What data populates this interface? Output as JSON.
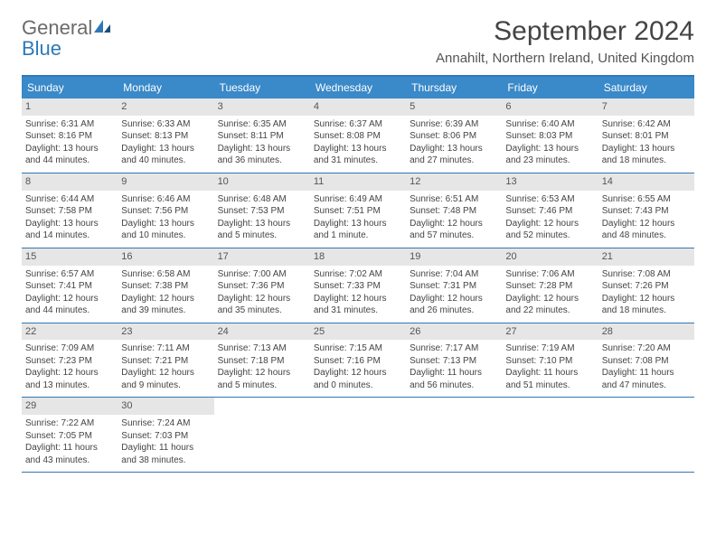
{
  "logo": {
    "general": "General",
    "blue": "Blue"
  },
  "title": "September 2024",
  "location": "Annahilt, Northern Ireland, United Kingdom",
  "colors": {
    "header_bg": "#3a89c9",
    "header_text": "#ffffff",
    "border": "#2f78b8",
    "date_bar_bg": "#e6e6e6",
    "text": "#444444",
    "logo_gray": "#6b6b6b",
    "logo_blue": "#2f78b8"
  },
  "day_headers": [
    "Sunday",
    "Monday",
    "Tuesday",
    "Wednesday",
    "Thursday",
    "Friday",
    "Saturday"
  ],
  "weeks": [
    [
      {
        "date": "1",
        "sunrise": "Sunrise: 6:31 AM",
        "sunset": "Sunset: 8:16 PM",
        "daylight": "Daylight: 13 hours and 44 minutes."
      },
      {
        "date": "2",
        "sunrise": "Sunrise: 6:33 AM",
        "sunset": "Sunset: 8:13 PM",
        "daylight": "Daylight: 13 hours and 40 minutes."
      },
      {
        "date": "3",
        "sunrise": "Sunrise: 6:35 AM",
        "sunset": "Sunset: 8:11 PM",
        "daylight": "Daylight: 13 hours and 36 minutes."
      },
      {
        "date": "4",
        "sunrise": "Sunrise: 6:37 AM",
        "sunset": "Sunset: 8:08 PM",
        "daylight": "Daylight: 13 hours and 31 minutes."
      },
      {
        "date": "5",
        "sunrise": "Sunrise: 6:39 AM",
        "sunset": "Sunset: 8:06 PM",
        "daylight": "Daylight: 13 hours and 27 minutes."
      },
      {
        "date": "6",
        "sunrise": "Sunrise: 6:40 AM",
        "sunset": "Sunset: 8:03 PM",
        "daylight": "Daylight: 13 hours and 23 minutes."
      },
      {
        "date": "7",
        "sunrise": "Sunrise: 6:42 AM",
        "sunset": "Sunset: 8:01 PM",
        "daylight": "Daylight: 13 hours and 18 minutes."
      }
    ],
    [
      {
        "date": "8",
        "sunrise": "Sunrise: 6:44 AM",
        "sunset": "Sunset: 7:58 PM",
        "daylight": "Daylight: 13 hours and 14 minutes."
      },
      {
        "date": "9",
        "sunrise": "Sunrise: 6:46 AM",
        "sunset": "Sunset: 7:56 PM",
        "daylight": "Daylight: 13 hours and 10 minutes."
      },
      {
        "date": "10",
        "sunrise": "Sunrise: 6:48 AM",
        "sunset": "Sunset: 7:53 PM",
        "daylight": "Daylight: 13 hours and 5 minutes."
      },
      {
        "date": "11",
        "sunrise": "Sunrise: 6:49 AM",
        "sunset": "Sunset: 7:51 PM",
        "daylight": "Daylight: 13 hours and 1 minute."
      },
      {
        "date": "12",
        "sunrise": "Sunrise: 6:51 AM",
        "sunset": "Sunset: 7:48 PM",
        "daylight": "Daylight: 12 hours and 57 minutes."
      },
      {
        "date": "13",
        "sunrise": "Sunrise: 6:53 AM",
        "sunset": "Sunset: 7:46 PM",
        "daylight": "Daylight: 12 hours and 52 minutes."
      },
      {
        "date": "14",
        "sunrise": "Sunrise: 6:55 AM",
        "sunset": "Sunset: 7:43 PM",
        "daylight": "Daylight: 12 hours and 48 minutes."
      }
    ],
    [
      {
        "date": "15",
        "sunrise": "Sunrise: 6:57 AM",
        "sunset": "Sunset: 7:41 PM",
        "daylight": "Daylight: 12 hours and 44 minutes."
      },
      {
        "date": "16",
        "sunrise": "Sunrise: 6:58 AM",
        "sunset": "Sunset: 7:38 PM",
        "daylight": "Daylight: 12 hours and 39 minutes."
      },
      {
        "date": "17",
        "sunrise": "Sunrise: 7:00 AM",
        "sunset": "Sunset: 7:36 PM",
        "daylight": "Daylight: 12 hours and 35 minutes."
      },
      {
        "date": "18",
        "sunrise": "Sunrise: 7:02 AM",
        "sunset": "Sunset: 7:33 PM",
        "daylight": "Daylight: 12 hours and 31 minutes."
      },
      {
        "date": "19",
        "sunrise": "Sunrise: 7:04 AM",
        "sunset": "Sunset: 7:31 PM",
        "daylight": "Daylight: 12 hours and 26 minutes."
      },
      {
        "date": "20",
        "sunrise": "Sunrise: 7:06 AM",
        "sunset": "Sunset: 7:28 PM",
        "daylight": "Daylight: 12 hours and 22 minutes."
      },
      {
        "date": "21",
        "sunrise": "Sunrise: 7:08 AM",
        "sunset": "Sunset: 7:26 PM",
        "daylight": "Daylight: 12 hours and 18 minutes."
      }
    ],
    [
      {
        "date": "22",
        "sunrise": "Sunrise: 7:09 AM",
        "sunset": "Sunset: 7:23 PM",
        "daylight": "Daylight: 12 hours and 13 minutes."
      },
      {
        "date": "23",
        "sunrise": "Sunrise: 7:11 AM",
        "sunset": "Sunset: 7:21 PM",
        "daylight": "Daylight: 12 hours and 9 minutes."
      },
      {
        "date": "24",
        "sunrise": "Sunrise: 7:13 AM",
        "sunset": "Sunset: 7:18 PM",
        "daylight": "Daylight: 12 hours and 5 minutes."
      },
      {
        "date": "25",
        "sunrise": "Sunrise: 7:15 AM",
        "sunset": "Sunset: 7:16 PM",
        "daylight": "Daylight: 12 hours and 0 minutes."
      },
      {
        "date": "26",
        "sunrise": "Sunrise: 7:17 AM",
        "sunset": "Sunset: 7:13 PM",
        "daylight": "Daylight: 11 hours and 56 minutes."
      },
      {
        "date": "27",
        "sunrise": "Sunrise: 7:19 AM",
        "sunset": "Sunset: 7:10 PM",
        "daylight": "Daylight: 11 hours and 51 minutes."
      },
      {
        "date": "28",
        "sunrise": "Sunrise: 7:20 AM",
        "sunset": "Sunset: 7:08 PM",
        "daylight": "Daylight: 11 hours and 47 minutes."
      }
    ],
    [
      {
        "date": "29",
        "sunrise": "Sunrise: 7:22 AM",
        "sunset": "Sunset: 7:05 PM",
        "daylight": "Daylight: 11 hours and 43 minutes."
      },
      {
        "date": "30",
        "sunrise": "Sunrise: 7:24 AM",
        "sunset": "Sunset: 7:03 PM",
        "daylight": "Daylight: 11 hours and 38 minutes."
      },
      {
        "empty": true
      },
      {
        "empty": true
      },
      {
        "empty": true
      },
      {
        "empty": true
      },
      {
        "empty": true
      }
    ]
  ]
}
